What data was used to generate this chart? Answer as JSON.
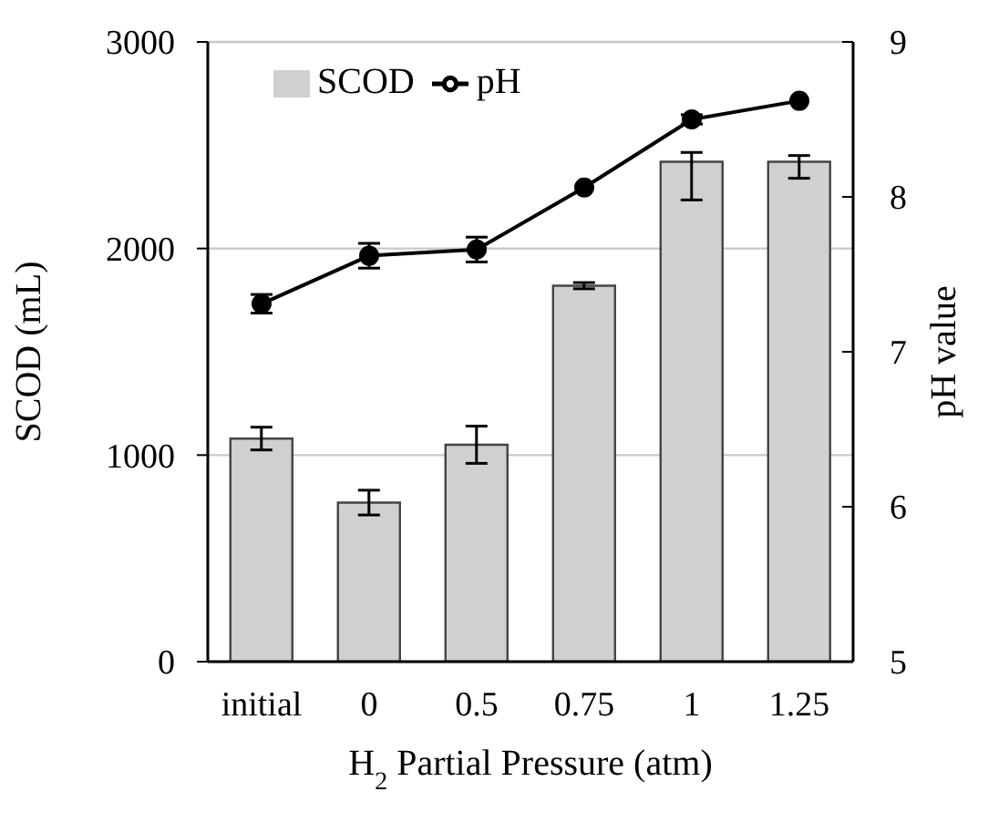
{
  "chart_data": {
    "type": "bar",
    "xlabel": "H$_{2}$ Partial Pressure (atm)",
    "ylabel": "SCOD (mL)",
    "y2label": "pH value",
    "categories": [
      "initial",
      "0",
      "0.5",
      "0.75",
      "1",
      "1.25"
    ],
    "series": [
      {
        "name": "SCOD",
        "color": "#d0d0d0",
        "values": [
          1080,
          770,
          1050,
          1820,
          2420,
          2420
        ],
        "errors": [
          55,
          60,
          90,
          15,
          [
            2235,
            2465
          ],
          [
            2340,
            2450
          ]
        ]
      },
      {
        "name": "pH",
        "type": "line",
        "axis": "y2",
        "color": "#000000",
        "values": [
          7.31,
          7.62,
          7.66,
          8.06,
          8.5,
          8.62
        ],
        "errors": [
          0.06,
          0.08,
          0.08,
          null,
          0.03,
          null
        ]
      }
    ],
    "ylim": [
      0,
      3000
    ],
    "yticks": [
      0,
      1000,
      2000,
      3000
    ],
    "y2lim": [
      5,
      9
    ],
    "y2ticks": [
      5,
      6,
      7,
      8,
      9
    ],
    "grid": "y",
    "legend": "top left",
    "marker": "circle"
  }
}
